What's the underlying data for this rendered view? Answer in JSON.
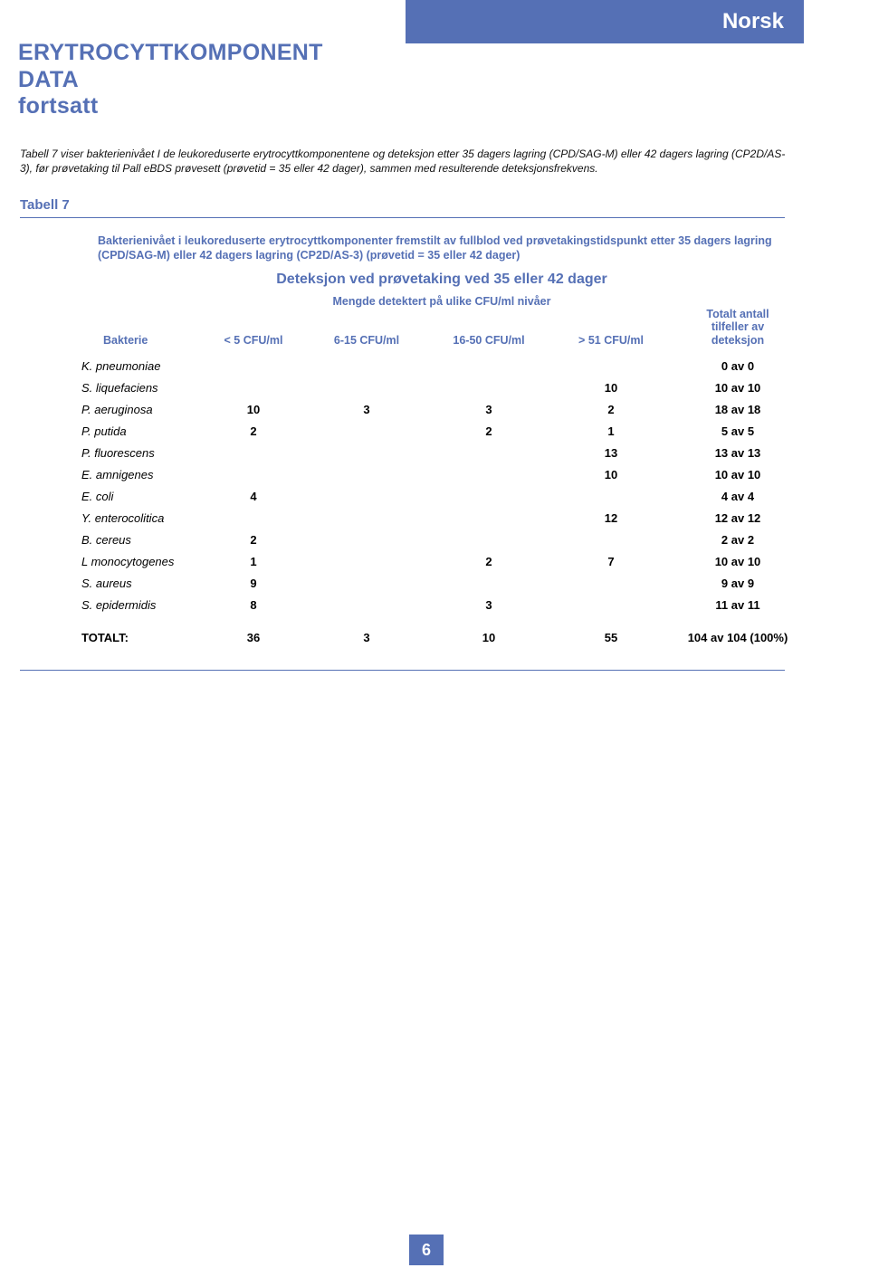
{
  "colors": {
    "brand": "#5570b5",
    "text": "#111111",
    "bg": "#ffffff"
  },
  "language_tag": "Norsk",
  "page_title_line1": "ERYTROCYTTKOMPONENT",
  "page_title_line2": "DATA",
  "page_title_line3": "fortsatt",
  "intro_text": "Tabell 7 viser bakterienivået I de leukoreduserte erytrocyttkomponentene og deteksjon etter 35 dagers lagring (CPD/SAG-M) eller 42 dagers lagring (CP2D/AS-3), før prøvetaking til Pall eBDS prøvesett (prøvetid = 35 eller 42 dager), sammen med resulterende deteksjonsfrekvens.",
  "table_label": "Tabell 7",
  "table_caption": "Bakterienivået i leukoreduserte erytrocyttkomponenter fremstilt av fullblod ved prøvetakingstidspunkt etter 35 dagers lagring (CPD/SAG-M) eller 42 dagers lagring (CP2D/AS-3) (prøvetid = 35 eller 42 dager)",
  "table_subtitle": "Deteksjon ved prøvetaking ved 35 eller 42 dager",
  "table_sub2": "Mengde detektert på ulike CFU/ml nivåer",
  "columns": {
    "bacteria": "Bakterie",
    "c1": "< 5 CFU/ml",
    "c2": "6-15 CFU/ml",
    "c3": "16-50 CFU/ml",
    "c4": "> 51 CFU/ml",
    "detection_line1": "Totalt antall",
    "detection_line2": "tilfeller av",
    "detection_line3": "deteksjon"
  },
  "rows": [
    {
      "name": "K. pneumoniae",
      "c1": "",
      "c2": "",
      "c3": "",
      "c4": "",
      "det": "0 av 0"
    },
    {
      "name": "S. liquefaciens",
      "c1": "",
      "c2": "",
      "c3": "",
      "c4": "10",
      "det": "10 av 10"
    },
    {
      "name": "P. aeruginosa",
      "c1": "10",
      "c2": "3",
      "c3": "3",
      "c4": "2",
      "det": "18 av 18"
    },
    {
      "name": "P. putida",
      "c1": "2",
      "c2": "",
      "c3": "2",
      "c4": "1",
      "det": "5 av 5"
    },
    {
      "name": "P. fluorescens",
      "c1": "",
      "c2": "",
      "c3": "",
      "c4": "13",
      "det": "13 av 13"
    },
    {
      "name": "E. amnigenes",
      "c1": "",
      "c2": "",
      "c3": "",
      "c4": "10",
      "det": "10 av 10"
    },
    {
      "name": "E. coli",
      "c1": "4",
      "c2": "",
      "c3": "",
      "c4": "",
      "det": "4 av 4"
    },
    {
      "name": "Y. enterocolitica",
      "c1": "",
      "c2": "",
      "c3": "",
      "c4": "12",
      "det": "12 av 12"
    },
    {
      "name": "B. cereus",
      "c1": "2",
      "c2": "",
      "c3": "",
      "c4": "",
      "det": "2 av 2"
    },
    {
      "name": "L monocytogenes",
      "c1": "1",
      "c2": "",
      "c3": "2",
      "c4": "7",
      "det": "10 av 10"
    },
    {
      "name": "S. aureus",
      "c1": "9",
      "c2": "",
      "c3": "",
      "c4": "",
      "det": "9 av 9"
    },
    {
      "name": "S. epidermidis",
      "c1": "8",
      "c2": "",
      "c3": "3",
      "c4": "",
      "det": "11 av 11"
    }
  ],
  "total_row": {
    "name": "TOTALT:",
    "c1": "36",
    "c2": "3",
    "c3": "10",
    "c4": "55",
    "det": "104 av 104 (100%)"
  },
  "page_number": "6"
}
